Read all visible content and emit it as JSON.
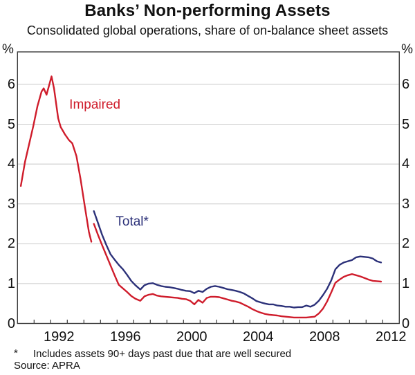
{
  "title": "Banks’ Non-performing Assets",
  "subtitle": "Consolidated global operations, share of on-balance sheet assets",
  "footnote": {
    "marker": "*",
    "text": "Includes assets 90+ days past due that are well secured",
    "source": "Source: APRA"
  },
  "colors": {
    "impaired": "#cf1c2b",
    "total": "#2c3179",
    "grid": "#c9c9c9",
    "frame": "#3a3a3a",
    "text": "#111111"
  },
  "chart_data": {
    "type": "line",
    "title": "Banks’ Non-performing Assets",
    "subtitle": "Consolidated global operations, share of on-balance sheet assets",
    "unit_left": "%",
    "unit_right": "%",
    "ylim": [
      0,
      7
    ],
    "ytick_values": [
      0,
      1,
      2,
      3,
      4,
      5,
      6
    ],
    "ytick_labels": [
      "0",
      "1",
      "2",
      "3",
      "4",
      "5",
      "6"
    ],
    "xlim": [
      1990,
      2013
    ],
    "xtick_years": [
      1991,
      1992,
      1993,
      1994,
      1995,
      1996,
      1997,
      1998,
      1999,
      2000,
      2001,
      2002,
      2003,
      2004,
      2005,
      2006,
      2007,
      2008,
      2009,
      2010,
      2011,
      2012
    ],
    "xlabels": [
      {
        "text": "1992",
        "year": 1992
      },
      {
        "text": "1996",
        "year": 1996
      },
      {
        "text": "2000",
        "year": 2000
      },
      {
        "text": "2004",
        "year": 2004
      },
      {
        "text": "2008",
        "year": 2008
      },
      {
        "text": "2012",
        "year": 2012
      }
    ],
    "grid": true,
    "legend_position": "inline-annotations",
    "annotations": [
      {
        "text": "Impaired",
        "x": 1993.12,
        "y": 5.49,
        "color": "#cf1c2b"
      },
      {
        "text": "Total*",
        "x": 1995.92,
        "y": 2.56,
        "color": "#2c3179"
      }
    ],
    "series": [
      {
        "name": "Impaired (pre-1994 series)",
        "color": "#cf1c2b",
        "points": [
          [
            1990.2,
            3.45
          ],
          [
            1990.45,
            4.05
          ],
          [
            1990.7,
            4.5
          ],
          [
            1990.95,
            4.95
          ],
          [
            1991.2,
            5.45
          ],
          [
            1991.45,
            5.82
          ],
          [
            1991.58,
            5.9
          ],
          [
            1991.75,
            5.74
          ],
          [
            1992.05,
            6.2
          ],
          [
            1992.2,
            5.9
          ],
          [
            1992.45,
            5.15
          ],
          [
            1992.6,
            4.93
          ],
          [
            1992.85,
            4.75
          ],
          [
            1993.1,
            4.6
          ],
          [
            1993.3,
            4.52
          ],
          [
            1993.55,
            4.2
          ],
          [
            1993.8,
            3.62
          ],
          [
            1994.05,
            2.95
          ],
          [
            1994.3,
            2.3
          ],
          [
            1994.45,
            2.05
          ]
        ]
      },
      {
        "name": "Total*",
        "color": "#2c3179",
        "points": [
          [
            1994.6,
            2.82
          ],
          [
            1994.85,
            2.52
          ],
          [
            1995.1,
            2.22
          ],
          [
            1995.35,
            1.97
          ],
          [
            1995.6,
            1.74
          ],
          [
            1995.85,
            1.6
          ],
          [
            1996.1,
            1.47
          ],
          [
            1996.35,
            1.36
          ],
          [
            1996.6,
            1.22
          ],
          [
            1996.85,
            1.07
          ],
          [
            1997.1,
            0.96
          ],
          [
            1997.4,
            0.85
          ],
          [
            1997.65,
            0.96
          ],
          [
            1997.9,
            1.0
          ],
          [
            1998.15,
            1.01
          ],
          [
            1998.4,
            0.97
          ],
          [
            1998.65,
            0.94
          ],
          [
            1998.9,
            0.92
          ],
          [
            1999.15,
            0.91
          ],
          [
            1999.4,
            0.89
          ],
          [
            1999.65,
            0.87
          ],
          [
            1999.9,
            0.84
          ],
          [
            2000.15,
            0.82
          ],
          [
            2000.4,
            0.81
          ],
          [
            2000.65,
            0.76
          ],
          [
            2000.9,
            0.82
          ],
          [
            2001.15,
            0.79
          ],
          [
            2001.4,
            0.87
          ],
          [
            2001.65,
            0.92
          ],
          [
            2001.9,
            0.94
          ],
          [
            2002.15,
            0.92
          ],
          [
            2002.4,
            0.89
          ],
          [
            2002.65,
            0.86
          ],
          [
            2002.9,
            0.84
          ],
          [
            2003.15,
            0.82
          ],
          [
            2003.4,
            0.79
          ],
          [
            2003.65,
            0.75
          ],
          [
            2003.9,
            0.69
          ],
          [
            2004.15,
            0.63
          ],
          [
            2004.4,
            0.56
          ],
          [
            2004.65,
            0.53
          ],
          [
            2004.9,
            0.5
          ],
          [
            2005.15,
            0.48
          ],
          [
            2005.4,
            0.48
          ],
          [
            2005.65,
            0.45
          ],
          [
            2005.9,
            0.44
          ],
          [
            2006.15,
            0.42
          ],
          [
            2006.4,
            0.42
          ],
          [
            2006.65,
            0.4
          ],
          [
            2006.9,
            0.41
          ],
          [
            2007.15,
            0.41
          ],
          [
            2007.4,
            0.45
          ],
          [
            2007.65,
            0.42
          ],
          [
            2007.9,
            0.47
          ],
          [
            2008.15,
            0.57
          ],
          [
            2008.4,
            0.71
          ],
          [
            2008.65,
            0.87
          ],
          [
            2008.9,
            1.08
          ],
          [
            2009.15,
            1.36
          ],
          [
            2009.4,
            1.47
          ],
          [
            2009.65,
            1.53
          ],
          [
            2009.9,
            1.56
          ],
          [
            2010.15,
            1.59
          ],
          [
            2010.4,
            1.66
          ],
          [
            2010.65,
            1.68
          ],
          [
            2010.9,
            1.67
          ],
          [
            2011.15,
            1.66
          ],
          [
            2011.4,
            1.63
          ],
          [
            2011.65,
            1.56
          ],
          [
            2011.9,
            1.53
          ]
        ]
      },
      {
        "name": "Impaired",
        "color": "#cf1c2b",
        "points": [
          [
            1994.6,
            2.5
          ],
          [
            1994.85,
            2.22
          ],
          [
            1995.1,
            1.96
          ],
          [
            1995.35,
            1.71
          ],
          [
            1995.6,
            1.46
          ],
          [
            1995.85,
            1.21
          ],
          [
            1996.1,
            0.97
          ],
          [
            1996.35,
            0.88
          ],
          [
            1996.6,
            0.79
          ],
          [
            1996.85,
            0.69
          ],
          [
            1997.1,
            0.62
          ],
          [
            1997.4,
            0.57
          ],
          [
            1997.65,
            0.68
          ],
          [
            1997.9,
            0.72
          ],
          [
            1998.15,
            0.74
          ],
          [
            1998.4,
            0.7
          ],
          [
            1998.65,
            0.68
          ],
          [
            1998.9,
            0.67
          ],
          [
            1999.15,
            0.66
          ],
          [
            1999.4,
            0.65
          ],
          [
            1999.65,
            0.64
          ],
          [
            1999.9,
            0.62
          ],
          [
            2000.15,
            0.61
          ],
          [
            2000.4,
            0.57
          ],
          [
            2000.65,
            0.48
          ],
          [
            2000.9,
            0.59
          ],
          [
            2001.15,
            0.52
          ],
          [
            2001.4,
            0.64
          ],
          [
            2001.65,
            0.67
          ],
          [
            2001.9,
            0.67
          ],
          [
            2002.15,
            0.66
          ],
          [
            2002.4,
            0.63
          ],
          [
            2002.65,
            0.6
          ],
          [
            2002.9,
            0.57
          ],
          [
            2003.15,
            0.55
          ],
          [
            2003.4,
            0.52
          ],
          [
            2003.65,
            0.47
          ],
          [
            2003.9,
            0.42
          ],
          [
            2004.15,
            0.36
          ],
          [
            2004.4,
            0.31
          ],
          [
            2004.65,
            0.27
          ],
          [
            2004.9,
            0.24
          ],
          [
            2005.15,
            0.22
          ],
          [
            2005.4,
            0.21
          ],
          [
            2005.65,
            0.2
          ],
          [
            2005.9,
            0.18
          ],
          [
            2006.15,
            0.17
          ],
          [
            2006.4,
            0.16
          ],
          [
            2006.65,
            0.15
          ],
          [
            2006.9,
            0.15
          ],
          [
            2007.15,
            0.15
          ],
          [
            2007.4,
            0.15
          ],
          [
            2007.65,
            0.16
          ],
          [
            2007.9,
            0.17
          ],
          [
            2008.15,
            0.25
          ],
          [
            2008.4,
            0.37
          ],
          [
            2008.65,
            0.55
          ],
          [
            2008.9,
            0.78
          ],
          [
            2009.15,
            1.02
          ],
          [
            2009.4,
            1.1
          ],
          [
            2009.65,
            1.17
          ],
          [
            2009.9,
            1.21
          ],
          [
            2010.15,
            1.24
          ],
          [
            2010.4,
            1.21
          ],
          [
            2010.65,
            1.18
          ],
          [
            2010.9,
            1.14
          ],
          [
            2011.15,
            1.1
          ],
          [
            2011.4,
            1.07
          ],
          [
            2011.65,
            1.06
          ],
          [
            2011.9,
            1.05
          ]
        ]
      }
    ]
  }
}
